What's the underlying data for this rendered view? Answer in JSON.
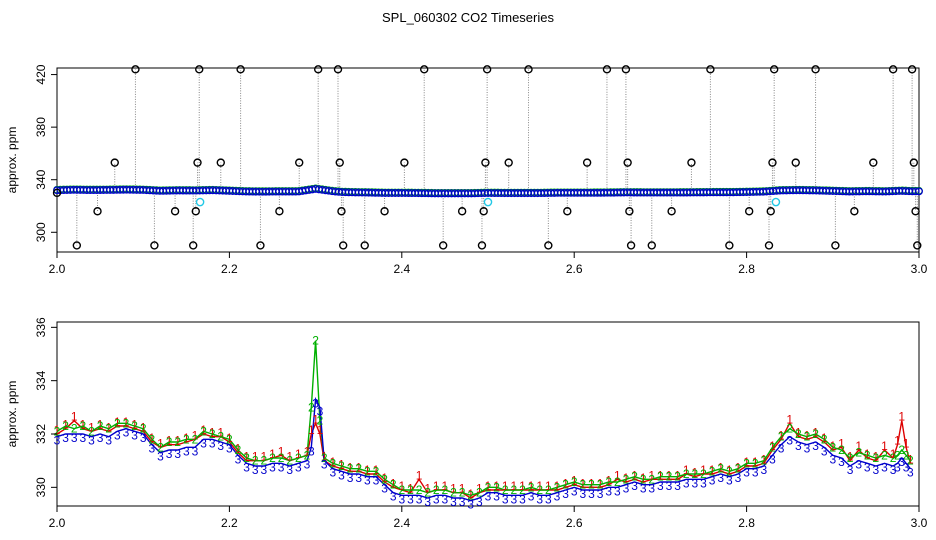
{
  "figure": {
    "title": "SPL_060302  CO2 Timeseries"
  },
  "colors": {
    "series1": "#dd0000",
    "series2": "#00b000",
    "series3": "#0000cc",
    "flagged": "#22c8e6",
    "spike": "#000000",
    "link": "#888888"
  },
  "chart_data": [
    {
      "type": "scatter",
      "ylabel": "approx. ppm",
      "xlim": [
        2.0,
        3.0
      ],
      "ylim": [
        285,
        425
      ],
      "x_ticks": [
        "2.0",
        "2.2",
        "2.4",
        "2.6",
        "2.8",
        "3.0"
      ],
      "y_ticks": [
        "300",
        "340",
        "380",
        "420"
      ],
      "grid": false,
      "baseline": {
        "x": [
          2.0,
          2.02,
          2.04,
          2.06,
          2.08,
          2.1,
          2.12,
          2.14,
          2.16,
          2.18,
          2.2,
          2.22,
          2.24,
          2.26,
          2.28,
          2.3,
          2.32,
          2.33,
          2.34,
          2.36,
          2.38,
          2.4,
          2.42,
          2.44,
          2.46,
          2.48,
          2.5,
          2.52,
          2.54,
          2.56,
          2.58,
          2.6,
          2.62,
          2.64,
          2.66,
          2.68,
          2.7,
          2.72,
          2.74,
          2.76,
          2.78,
          2.8,
          2.82,
          2.84,
          2.86,
          2.88,
          2.9,
          2.92,
          2.94,
          2.96,
          2.98,
          2.99
        ],
        "y": [
          332,
          332.3,
          332.1,
          332.2,
          332.4,
          332.2,
          331.5,
          331.8,
          331.7,
          332,
          331.5,
          331,
          330.9,
          331,
          331,
          333,
          331.2,
          330.6,
          330.4,
          330.2,
          329.9,
          329.9,
          329.8,
          329.6,
          329.6,
          329.6,
          329.9,
          329.8,
          329.8,
          329.8,
          330,
          330,
          330,
          330.1,
          330.3,
          330.2,
          330.2,
          330.2,
          330.3,
          330.4,
          330.4,
          330.6,
          330.9,
          331.8,
          332,
          331.8,
          331.4,
          331,
          331.2,
          331,
          331.5,
          331.2
        ]
      },
      "spikes": [
        {
          "x": 2.0,
          "y": 330
        },
        {
          "x": 2.023,
          "y": 290
        },
        {
          "x": 2.047,
          "y": 316
        },
        {
          "x": 2.067,
          "y": 353
        },
        {
          "x": 2.091,
          "y": 424
        },
        {
          "x": 2.113,
          "y": 290
        },
        {
          "x": 2.137,
          "y": 316
        },
        {
          "x": 2.158,
          "y": 290
        },
        {
          "x": 2.161,
          "y": 316
        },
        {
          "x": 2.163,
          "y": 353
        },
        {
          "x": 2.165,
          "y": 424
        },
        {
          "x": 2.19,
          "y": 353
        },
        {
          "x": 2.213,
          "y": 424
        },
        {
          "x": 2.236,
          "y": 290
        },
        {
          "x": 2.258,
          "y": 316
        },
        {
          "x": 2.281,
          "y": 353
        },
        {
          "x": 2.303,
          "y": 424
        },
        {
          "x": 2.326,
          "y": 424
        },
        {
          "x": 2.328,
          "y": 353
        },
        {
          "x": 2.33,
          "y": 316
        },
        {
          "x": 2.332,
          "y": 290
        },
        {
          "x": 2.357,
          "y": 290
        },
        {
          "x": 2.38,
          "y": 316
        },
        {
          "x": 2.403,
          "y": 353
        },
        {
          "x": 2.426,
          "y": 424
        },
        {
          "x": 2.448,
          "y": 290
        },
        {
          "x": 2.47,
          "y": 316
        },
        {
          "x": 2.493,
          "y": 290
        },
        {
          "x": 2.495,
          "y": 316
        },
        {
          "x": 2.497,
          "y": 353
        },
        {
          "x": 2.499,
          "y": 424
        },
        {
          "x": 2.524,
          "y": 353
        },
        {
          "x": 2.547,
          "y": 424
        },
        {
          "x": 2.57,
          "y": 290
        },
        {
          "x": 2.592,
          "y": 316
        },
        {
          "x": 2.615,
          "y": 353
        },
        {
          "x": 2.638,
          "y": 424
        },
        {
          "x": 2.66,
          "y": 424
        },
        {
          "x": 2.662,
          "y": 353
        },
        {
          "x": 2.664,
          "y": 316
        },
        {
          "x": 2.666,
          "y": 290
        },
        {
          "x": 2.69,
          "y": 290
        },
        {
          "x": 2.713,
          "y": 316
        },
        {
          "x": 2.736,
          "y": 353
        },
        {
          "x": 2.758,
          "y": 424
        },
        {
          "x": 2.78,
          "y": 290
        },
        {
          "x": 2.803,
          "y": 316
        },
        {
          "x": 2.826,
          "y": 290
        },
        {
          "x": 2.828,
          "y": 316
        },
        {
          "x": 2.83,
          "y": 353
        },
        {
          "x": 2.832,
          "y": 424
        },
        {
          "x": 2.857,
          "y": 353
        },
        {
          "x": 2.88,
          "y": 424
        },
        {
          "x": 2.903,
          "y": 290
        },
        {
          "x": 2.925,
          "y": 316
        },
        {
          "x": 2.947,
          "y": 353
        },
        {
          "x": 2.97,
          "y": 424
        },
        {
          "x": 2.992,
          "y": 424
        },
        {
          "x": 2.994,
          "y": 353
        },
        {
          "x": 2.996,
          "y": 316
        },
        {
          "x": 2.998,
          "y": 290
        }
      ],
      "flagged_points": [
        {
          "x": 2.166,
          "y": 323
        },
        {
          "x": 2.5,
          "y": 323
        },
        {
          "x": 2.834,
          "y": 323
        }
      ]
    },
    {
      "type": "line",
      "ylabel": "approx. ppm",
      "xlim": [
        2.0,
        3.0
      ],
      "ylim": [
        329.3,
        336.2
      ],
      "x_ticks": [
        "2.0",
        "2.2",
        "2.4",
        "2.6",
        "2.8",
        "3.0"
      ],
      "y_ticks": [
        "330",
        "332",
        "334",
        "336"
      ],
      "grid": false,
      "series": [
        {
          "name": "1",
          "label_char": "1",
          "color_key": "series1"
        },
        {
          "name": "2",
          "label_char": "2",
          "color_key": "series2"
        },
        {
          "name": "3",
          "label_char": "3",
          "color_key": "series3"
        }
      ],
      "x": [
        2.0,
        2.01,
        2.02,
        2.03,
        2.04,
        2.05,
        2.06,
        2.07,
        2.08,
        2.09,
        2.1,
        2.11,
        2.12,
        2.13,
        2.14,
        2.15,
        2.16,
        2.17,
        2.18,
        2.19,
        2.2,
        2.21,
        2.22,
        2.23,
        2.24,
        2.25,
        2.26,
        2.27,
        2.28,
        2.29,
        2.295,
        2.3,
        2.305,
        2.31,
        2.32,
        2.33,
        2.34,
        2.35,
        2.36,
        2.37,
        2.38,
        2.39,
        2.4,
        2.41,
        2.42,
        2.43,
        2.44,
        2.45,
        2.46,
        2.47,
        2.48,
        2.49,
        2.5,
        2.51,
        2.52,
        2.53,
        2.54,
        2.55,
        2.56,
        2.57,
        2.58,
        2.59,
        2.6,
        2.61,
        2.62,
        2.63,
        2.64,
        2.65,
        2.66,
        2.67,
        2.68,
        2.69,
        2.7,
        2.71,
        2.72,
        2.73,
        2.74,
        2.75,
        2.76,
        2.77,
        2.78,
        2.79,
        2.8,
        2.81,
        2.82,
        2.83,
        2.84,
        2.85,
        2.86,
        2.87,
        2.88,
        2.89,
        2.9,
        2.91,
        2.92,
        2.93,
        2.94,
        2.95,
        2.96,
        2.97,
        2.975,
        2.98,
        2.985,
        2.99
      ],
      "values_series2": [
        332.1,
        332.3,
        332.2,
        332.3,
        332.1,
        332.3,
        332.2,
        332.4,
        332.4,
        332.3,
        332.2,
        331.8,
        331.5,
        331.7,
        331.7,
        331.8,
        331.8,
        332.1,
        332.0,
        331.9,
        331.8,
        331.4,
        331.1,
        331.0,
        331.0,
        331.1,
        331.1,
        331.0,
        331.1,
        331.2,
        333.0,
        335.5,
        332.5,
        331.1,
        330.9,
        330.8,
        330.7,
        330.7,
        330.6,
        330.6,
        330.3,
        330.1,
        329.9,
        329.9,
        329.9,
        329.8,
        329.9,
        329.9,
        329.8,
        329.8,
        329.7,
        329.8,
        330.0,
        330.0,
        329.9,
        329.9,
        329.9,
        330.0,
        329.9,
        329.9,
        330.0,
        330.1,
        330.2,
        330.1,
        330.1,
        330.1,
        330.2,
        330.2,
        330.3,
        330.4,
        330.3,
        330.3,
        330.4,
        330.4,
        330.4,
        330.5,
        330.5,
        330.5,
        330.6,
        330.7,
        330.6,
        330.7,
        330.9,
        330.9,
        331.0,
        331.5,
        331.9,
        332.2,
        332.0,
        331.9,
        332.0,
        331.8,
        331.5,
        331.4,
        331.1,
        331.3,
        331.2,
        331.1,
        331.2,
        331.1,
        331.2,
        331.4,
        331.2,
        331.0
      ],
      "values_series1": [
        332.0,
        332.2,
        332.5,
        332.2,
        332.1,
        332.2,
        332.1,
        332.3,
        332.3,
        332.2,
        332.1,
        331.7,
        331.5,
        331.6,
        331.6,
        331.7,
        331.8,
        332.0,
        331.9,
        331.9,
        331.7,
        331.3,
        331.0,
        331.0,
        331.0,
        331.1,
        331.2,
        331.0,
        331.1,
        331.2,
        332.0,
        332.4,
        332.0,
        331.0,
        330.8,
        330.7,
        330.6,
        330.6,
        330.5,
        330.5,
        330.2,
        330.0,
        329.9,
        329.8,
        330.3,
        329.8,
        329.9,
        329.9,
        329.8,
        329.8,
        329.6,
        329.8,
        329.9,
        329.9,
        329.9,
        329.9,
        329.9,
        329.9,
        329.9,
        329.9,
        329.9,
        330.0,
        330.1,
        330.0,
        330.0,
        330.0,
        330.1,
        330.3,
        330.2,
        330.3,
        330.2,
        330.3,
        330.3,
        330.3,
        330.3,
        330.5,
        330.4,
        330.5,
        330.5,
        330.6,
        330.5,
        330.6,
        330.8,
        330.8,
        330.9,
        331.4,
        331.8,
        332.4,
        331.9,
        331.8,
        331.9,
        331.7,
        331.4,
        331.5,
        331.0,
        331.4,
        331.1,
        331.0,
        331.4,
        331.1,
        331.6,
        332.5,
        331.5,
        330.9
      ],
      "values_series3": [
        331.9,
        332.0,
        332.0,
        332.0,
        331.9,
        332.0,
        331.9,
        332.1,
        332.2,
        332.1,
        332.0,
        331.6,
        331.3,
        331.4,
        331.4,
        331.5,
        331.5,
        331.8,
        331.8,
        331.7,
        331.6,
        331.2,
        330.9,
        330.8,
        330.8,
        330.9,
        330.9,
        330.8,
        330.9,
        331.0,
        331.5,
        333.3,
        333.0,
        331.0,
        330.7,
        330.6,
        330.5,
        330.5,
        330.4,
        330.4,
        330.1,
        329.8,
        329.7,
        329.7,
        329.7,
        329.6,
        329.7,
        329.7,
        329.6,
        329.6,
        329.5,
        329.6,
        329.8,
        329.8,
        329.7,
        329.7,
        329.7,
        329.8,
        329.7,
        329.7,
        329.8,
        329.9,
        330.0,
        329.9,
        329.9,
        329.9,
        330.0,
        330.0,
        330.1,
        330.2,
        330.1,
        330.1,
        330.2,
        330.2,
        330.2,
        330.3,
        330.3,
        330.3,
        330.4,
        330.5,
        330.4,
        330.5,
        330.7,
        330.7,
        330.8,
        331.2,
        331.6,
        331.9,
        331.7,
        331.6,
        331.7,
        331.5,
        331.2,
        331.1,
        330.8,
        331.0,
        330.9,
        330.8,
        330.9,
        330.8,
        330.9,
        331.1,
        330.9,
        330.7
      ]
    }
  ]
}
